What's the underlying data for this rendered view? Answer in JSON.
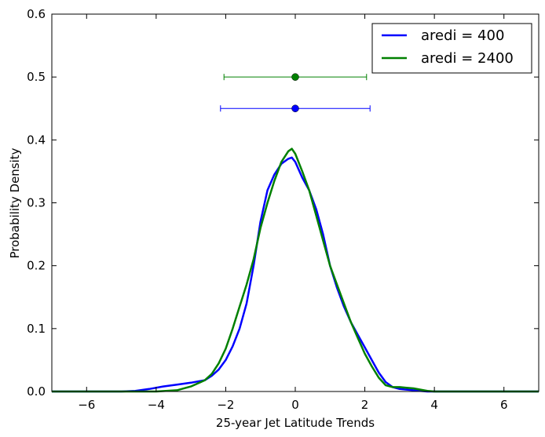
{
  "chart_data": {
    "type": "line",
    "title": "",
    "xlabel": "25-year Jet Latitude Trends",
    "ylabel": "Probability Density",
    "xlim": [
      -7,
      7
    ],
    "ylim": [
      0,
      0.6
    ],
    "xticks": [
      -6,
      -4,
      -2,
      0,
      2,
      4,
      6
    ],
    "xtick_labels": [
      "−6",
      "−4",
      "−2",
      "0",
      "2",
      "4",
      "6"
    ],
    "yticks": [
      0.0,
      0.1,
      0.2,
      0.3,
      0.4,
      0.5,
      0.6
    ],
    "ytick_labels": [
      "0.0",
      "0.1",
      "0.2",
      "0.3",
      "0.4",
      "0.5",
      "0.6"
    ],
    "grid": false,
    "legend_position": "top-right",
    "series": [
      {
        "name": "aredi = 400",
        "color": "#0000ff",
        "x": [
          -7,
          -5,
          -4.6,
          -4.2,
          -3.8,
          -3.4,
          -3.0,
          -2.6,
          -2.4,
          -2.2,
          -2.0,
          -1.8,
          -1.6,
          -1.4,
          -1.2,
          -1.0,
          -0.8,
          -0.6,
          -0.4,
          -0.2,
          -0.1,
          0.0,
          0.2,
          0.4,
          0.6,
          0.8,
          1.0,
          1.2,
          1.4,
          1.6,
          1.8,
          2.0,
          2.2,
          2.4,
          2.6,
          2.8,
          3.0,
          3.2,
          3.4,
          3.6,
          3.8,
          4.0,
          5,
          7
        ],
        "y": [
          0.0,
          0.0,
          0.001,
          0.004,
          0.008,
          0.011,
          0.014,
          0.018,
          0.025,
          0.035,
          0.05,
          0.072,
          0.1,
          0.14,
          0.2,
          0.27,
          0.32,
          0.345,
          0.362,
          0.37,
          0.372,
          0.365,
          0.34,
          0.32,
          0.29,
          0.25,
          0.2,
          0.165,
          0.135,
          0.11,
          0.09,
          0.07,
          0.05,
          0.03,
          0.015,
          0.007,
          0.004,
          0.003,
          0.002,
          0.001,
          0.0,
          0.0,
          0.0,
          0.0
        ]
      },
      {
        "name": "aredi = 2400",
        "color": "#008000",
        "x": [
          -7,
          -4,
          -3.4,
          -3.0,
          -2.6,
          -2.4,
          -2.2,
          -2.0,
          -1.8,
          -1.6,
          -1.4,
          -1.2,
          -1.0,
          -0.8,
          -0.6,
          -0.4,
          -0.2,
          -0.1,
          0.0,
          0.2,
          0.4,
          0.6,
          0.8,
          1.0,
          1.2,
          1.4,
          1.6,
          1.8,
          2.0,
          2.2,
          2.4,
          2.6,
          2.8,
          3.0,
          3.2,
          3.4,
          3.6,
          3.8,
          4.0,
          5,
          7
        ],
        "y": [
          0.0,
          0.0,
          0.002,
          0.008,
          0.018,
          0.028,
          0.045,
          0.068,
          0.1,
          0.135,
          0.17,
          0.21,
          0.26,
          0.3,
          0.335,
          0.365,
          0.382,
          0.386,
          0.378,
          0.35,
          0.32,
          0.28,
          0.24,
          0.2,
          0.17,
          0.14,
          0.11,
          0.085,
          0.06,
          0.04,
          0.022,
          0.01,
          0.007,
          0.007,
          0.006,
          0.005,
          0.003,
          0.001,
          0.0,
          0.0,
          0.0
        ]
      }
    ],
    "error_bars": [
      {
        "series": "aredi = 2400",
        "color": "#008000",
        "x": 0.0,
        "y": 0.5,
        "xmin": -2.05,
        "xmax": 2.05
      },
      {
        "series": "aredi = 400",
        "color": "#0000ff",
        "x": 0.0,
        "y": 0.45,
        "xmin": -2.15,
        "xmax": 2.15
      }
    ]
  }
}
